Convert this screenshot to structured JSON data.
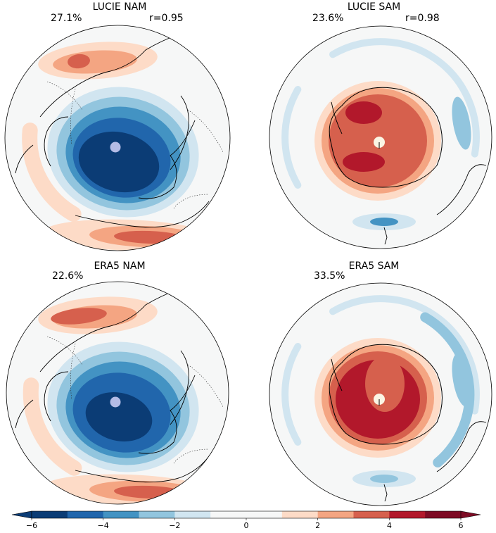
{
  "panels": [
    {
      "id": "lucie-nam",
      "title": "LUCIE NAM",
      "percent": "27.1%",
      "corr": "r=0.95",
      "hemisphere": "north",
      "source": "lucie"
    },
    {
      "id": "lucie-sam",
      "title": "LUCIE SAM",
      "percent": "23.6%",
      "corr": "r=0.98",
      "hemisphere": "south",
      "source": "lucie"
    },
    {
      "id": "era5-nam",
      "title": "ERA5 NAM",
      "percent": "22.6%",
      "corr": "",
      "hemisphere": "north",
      "source": "era5"
    },
    {
      "id": "era5-sam",
      "title": "ERA5 SAM",
      "percent": "33.5%",
      "corr": "",
      "hemisphere": "south",
      "source": "era5"
    }
  ],
  "colorbar": {
    "min": -6,
    "max": 6,
    "step": 1,
    "ticks": [
      "−6",
      "−4",
      "−2",
      "0",
      "2",
      "4",
      "6"
    ],
    "extend": "both",
    "colors": [
      "#0b3c75",
      "#2166ac",
      "#4393c3",
      "#92c5de",
      "#d1e5f0",
      "#f6f7f7",
      "#f6f7f7",
      "#fddbc7",
      "#f4a582",
      "#d6604d",
      "#b2182b",
      "#7d0b24"
    ]
  },
  "palette": {
    "ocean": "#f6f7f7",
    "coast": "#000000",
    "pole_north": "#b4bce6",
    "pole_south": "#fbf5e4"
  }
}
